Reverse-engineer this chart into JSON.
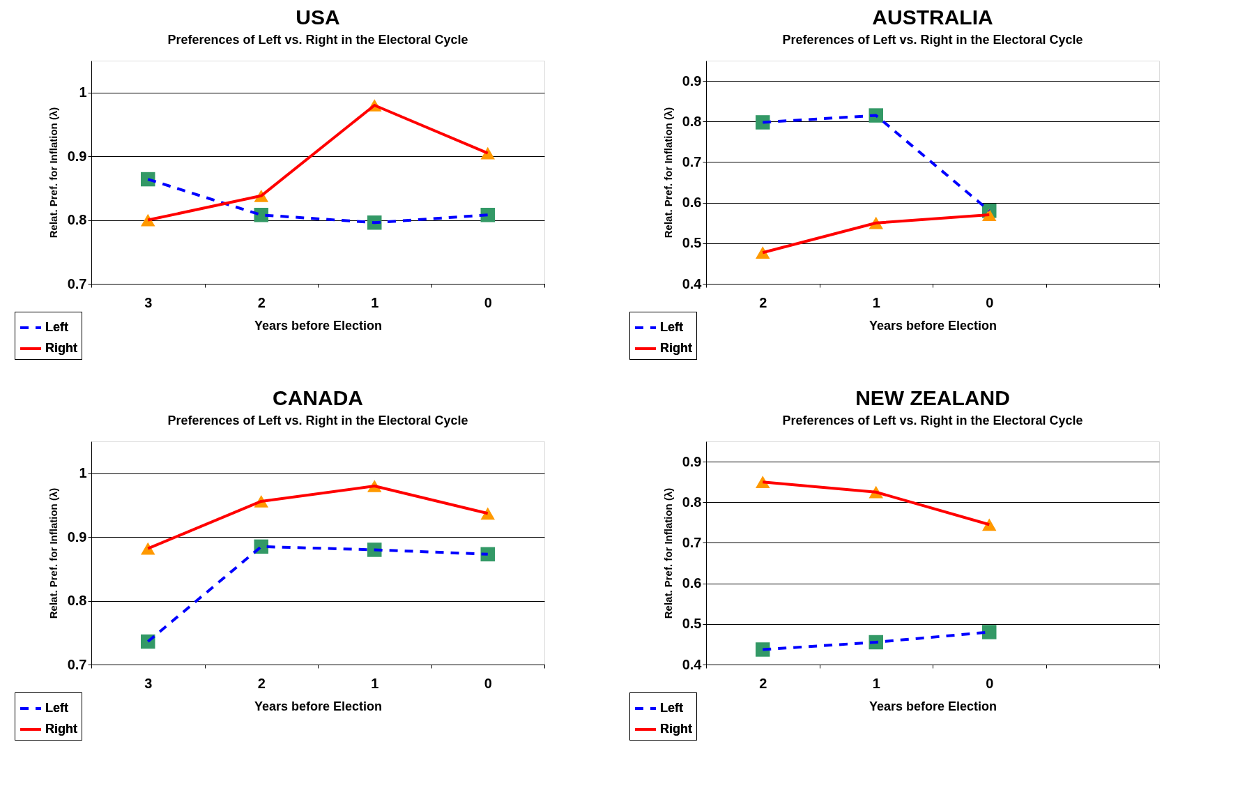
{
  "chart_data": [
    {
      "type": "line",
      "title": "USA",
      "subtitle": "Preferences of Left vs. Right in the Electoral Cycle",
      "xlabel": "Years before Election",
      "ylabel": "Relat. Pref. for Inflation (λ)",
      "categories": [
        "3",
        "2",
        "1",
        "0"
      ],
      "ylim": [
        0.7,
        1.05
      ],
      "yticks": [
        0.7,
        0.8,
        0.9,
        1
      ],
      "grid": "y",
      "legend": "bottom left",
      "series": [
        {
          "name": "Left",
          "color": "#0000ff",
          "colors": [
            "#339966",
            "#339966",
            "#339966",
            "#339966"
          ],
          "line_style": "dashed",
          "marker": "square",
          "values": [
            0.864,
            0.808,
            0.796,
            0.808
          ]
        },
        {
          "name": "Right",
          "color": "#ff0000",
          "colors": [
            "#ff9900",
            "#ff9900",
            "#ff9900",
            "#ff9900"
          ],
          "line_style": "solid",
          "marker": "triangle",
          "values": [
            0.8,
            0.838,
            0.98,
            0.905
          ]
        }
      ]
    },
    {
      "type": "line",
      "title": "AUSTRALIA",
      "subtitle": "Preferences of Left vs. Right in the Electoral Cycle",
      "xlabel": "Years before Election",
      "ylabel": "Relat. Pref. for Inflation (λ)",
      "categories": [
        "2",
        "1",
        "0",
        null
      ],
      "ylim": [
        0.4,
        0.95
      ],
      "yticks": [
        0.4,
        0.5,
        0.6,
        0.7,
        0.8,
        0.9
      ],
      "grid": "y",
      "legend": "bottom left",
      "series": [
        {
          "name": "Left",
          "color": "#0000ff",
          "colors": [
            "#339966",
            "#339966",
            "#339966",
            null
          ],
          "line_style": "dashed",
          "marker": "square",
          "values": [
            0.798,
            0.815,
            0.58,
            null
          ]
        },
        {
          "name": "Right",
          "color": "#ff0000",
          "colors": [
            "#ff9900",
            "#ff9900",
            "#ff9900",
            null
          ],
          "line_style": "solid",
          "marker": "triangle",
          "values": [
            0.477,
            0.55,
            0.57,
            null
          ]
        }
      ]
    },
    {
      "type": "line",
      "title": "CANADA",
      "subtitle": "Preferences of Left vs. Right in the Electoral Cycle",
      "xlabel": "Years before Election",
      "ylabel": "Relat. Pref. for Inflation (λ)",
      "categories": [
        "3",
        "2",
        "1",
        "0"
      ],
      "ylim": [
        0.7,
        1.05
      ],
      "yticks": [
        0.7,
        0.8,
        0.9,
        1
      ],
      "grid": "y",
      "legend": "bottom left",
      "series": [
        {
          "name": "Left",
          "color": "#0000ff",
          "colors": [
            "#339966",
            "#339966",
            "#339966",
            "#339966"
          ],
          "line_style": "dashed",
          "marker": "square",
          "values": [
            0.736,
            0.885,
            0.88,
            0.873
          ]
        },
        {
          "name": "Right",
          "color": "#ff0000",
          "colors": [
            "#ff9900",
            "#ff9900",
            "#ff9900",
            "#ff9900"
          ],
          "line_style": "solid",
          "marker": "triangle",
          "values": [
            0.882,
            0.956,
            0.98,
            0.937
          ]
        }
      ]
    },
    {
      "type": "line",
      "title": "NEW ZEALAND",
      "subtitle": "Preferences of Left vs. Right in the Electoral Cycle",
      "xlabel": "Years before Election",
      "ylabel": "Relat. Pref. for Inflation (λ)",
      "categories": [
        "2",
        "1",
        "0",
        null
      ],
      "ylim": [
        0.4,
        0.95
      ],
      "yticks": [
        0.4,
        0.5,
        0.6,
        0.7,
        0.8,
        0.9
      ],
      "grid": "y",
      "legend": "bottom left",
      "series": [
        {
          "name": "Left",
          "color": "#0000ff",
          "colors": [
            "#339966",
            "#339966",
            "#339966",
            null
          ],
          "line_style": "dashed",
          "marker": "square",
          "values": [
            0.437,
            0.455,
            0.48,
            null
          ]
        },
        {
          "name": "Right",
          "color": "#ff0000",
          "colors": [
            "#ff9900",
            "#ff9900",
            "#ff9900",
            null
          ],
          "line_style": "solid",
          "marker": "triangle",
          "values": [
            0.85,
            0.825,
            0.745,
            null
          ]
        }
      ]
    }
  ]
}
